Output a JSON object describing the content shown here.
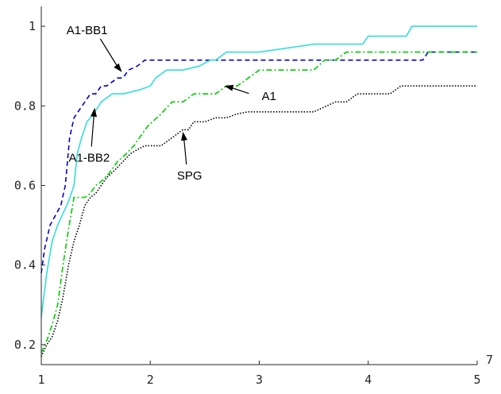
{
  "chart_data": {
    "type": "line",
    "title": "",
    "xlabel": "",
    "ylabel": "",
    "xlim": [
      1,
      5
    ],
    "ylim": [
      0.15,
      1.05
    ],
    "x_ticks": [
      1,
      2,
      3,
      4,
      5
    ],
    "x_tick_labels": [
      "1",
      "2",
      "3",
      "4",
      "5"
    ],
    "y_ticks": [
      0.2,
      0.4,
      0.6,
      0.8,
      1
    ],
    "y_tick_labels": [
      "0.2",
      "0.4",
      "0.6",
      "0.8",
      "1"
    ],
    "x_exponent_label": "7",
    "grid": false,
    "series": [
      {
        "name": "A1-BB1",
        "color": "#0000cc",
        "dash": "6,4",
        "x": [
          1,
          1.03,
          1.08,
          1.12,
          1.18,
          1.22,
          1.26,
          1.3,
          1.35,
          1.4,
          1.45,
          1.5,
          1.55,
          1.6,
          1.65,
          1.7,
          1.75,
          1.8,
          1.88,
          1.95,
          2.5,
          3,
          3.5,
          4,
          4.5,
          4.55,
          5
        ],
        "y": [
          0.38,
          0.44,
          0.5,
          0.52,
          0.55,
          0.6,
          0.72,
          0.77,
          0.79,
          0.81,
          0.83,
          0.83,
          0.85,
          0.85,
          0.86,
          0.87,
          0.87,
          0.89,
          0.9,
          0.915,
          0.915,
          0.915,
          0.915,
          0.915,
          0.915,
          0.935,
          0.935
        ]
      },
      {
        "name": "A1-BB2",
        "color": "#33dddd",
        "dash": "",
        "x": [
          1,
          1.05,
          1.1,
          1.15,
          1.2,
          1.25,
          1.3,
          1.33,
          1.37,
          1.42,
          1.48,
          1.55,
          1.65,
          1.75,
          1.9,
          2,
          2.05,
          2.15,
          2.3,
          2.45,
          2.55,
          2.6,
          2.7,
          3,
          3.5,
          3.95,
          4,
          4.35,
          4.4,
          5
        ],
        "y": [
          0.27,
          0.38,
          0.46,
          0.5,
          0.53,
          0.56,
          0.6,
          0.68,
          0.72,
          0.76,
          0.78,
          0.81,
          0.83,
          0.83,
          0.84,
          0.85,
          0.87,
          0.89,
          0.89,
          0.9,
          0.915,
          0.915,
          0.935,
          0.935,
          0.955,
          0.955,
          0.975,
          0.975,
          1,
          1
        ]
      },
      {
        "name": "A1",
        "color": "#00cc00",
        "dash": "7,3,2,3",
        "x": [
          1,
          1.05,
          1.1,
          1.15,
          1.2,
          1.25,
          1.3,
          1.35,
          1.4,
          1.45,
          1.5,
          1.55,
          1.62,
          1.7,
          1.78,
          1.85,
          1.9,
          1.98,
          2.1,
          2.2,
          2.3,
          2.4,
          2.5,
          2.6,
          2.7,
          2.8,
          2.9,
          3,
          3.2,
          3.5,
          3.6,
          3.7,
          3.8,
          4.4,
          4.5,
          5
        ],
        "y": [
          0.18,
          0.21,
          0.25,
          0.3,
          0.4,
          0.49,
          0.57,
          0.57,
          0.57,
          0.58,
          0.6,
          0.61,
          0.63,
          0.66,
          0.68,
          0.7,
          0.72,
          0.75,
          0.78,
          0.81,
          0.81,
          0.83,
          0.83,
          0.83,
          0.85,
          0.85,
          0.87,
          0.89,
          0.89,
          0.89,
          0.915,
          0.915,
          0.935,
          0.935,
          0.935,
          0.935
        ]
      },
      {
        "name": "SPG",
        "color": "#000000",
        "dash": "1.5,2",
        "x": [
          1,
          1.05,
          1.1,
          1.15,
          1.2,
          1.25,
          1.3,
          1.35,
          1.4,
          1.45,
          1.5,
          1.55,
          1.6,
          1.68,
          1.75,
          1.82,
          1.88,
          1.95,
          2.1,
          2.2,
          2.3,
          2.35,
          2.4,
          2.45,
          2.5,
          2.6,
          2.7,
          2.8,
          2.9,
          3,
          3.5,
          3.7,
          3.8,
          3.9,
          4,
          4.2,
          4.3,
          4.4,
          4.6,
          5
        ],
        "y": [
          0.17,
          0.2,
          0.22,
          0.26,
          0.32,
          0.4,
          0.46,
          0.5,
          0.55,
          0.57,
          0.58,
          0.6,
          0.62,
          0.64,
          0.66,
          0.68,
          0.69,
          0.7,
          0.7,
          0.72,
          0.74,
          0.74,
          0.76,
          0.76,
          0.76,
          0.77,
          0.77,
          0.78,
          0.785,
          0.785,
          0.785,
          0.81,
          0.81,
          0.83,
          0.83,
          0.83,
          0.85,
          0.85,
          0.85,
          0.85
        ]
      }
    ],
    "annotations": [
      {
        "text": "A1-BB1",
        "label_x": 1.42,
        "label_y": 0.98,
        "point_x": 1.74,
        "point_y": 0.885
      },
      {
        "text": "A1-BB2",
        "label_x": 1.44,
        "label_y": 0.66,
        "point_x": 1.49,
        "point_y": 0.795
      },
      {
        "text": "A1",
        "label_x": 3.09,
        "label_y": 0.815,
        "point_x": 2.68,
        "point_y": 0.85
      },
      {
        "text": "SPG",
        "label_x": 2.36,
        "label_y": 0.615,
        "point_x": 2.3,
        "point_y": 0.735
      }
    ]
  }
}
